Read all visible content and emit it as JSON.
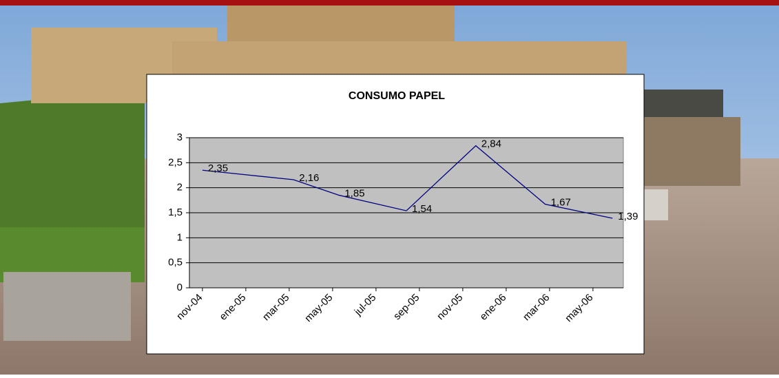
{
  "chart_data": {
    "type": "line",
    "title": "CONSUMO PAPEL",
    "x": [
      0,
      4.2,
      6.3,
      9.4,
      12.6,
      15.8,
      18.9
    ],
    "series": [
      {
        "name": "CONSUMO PAPEL",
        "color": "#000080",
        "values": [
          2.35,
          2.16,
          1.85,
          1.54,
          2.84,
          1.67,
          1.39
        ],
        "value_labels": [
          "2,35",
          "2,16",
          "1,85",
          "1,54",
          "2,84",
          "1,67",
          "1,39"
        ]
      }
    ],
    "xlim": [
      -0.6,
      19.4
    ],
    "xticks": [
      {
        "value": 0,
        "label": "nov-04"
      },
      {
        "value": 2,
        "label": "ene-05"
      },
      {
        "value": 4,
        "label": "mar-05"
      },
      {
        "value": 6,
        "label": "may-05"
      },
      {
        "value": 8,
        "label": "jul-05"
      },
      {
        "value": 10,
        "label": "sep-05"
      },
      {
        "value": 12,
        "label": "nov-05"
      },
      {
        "value": 14,
        "label": "ene-06"
      },
      {
        "value": 16,
        "label": "mar-06"
      },
      {
        "value": 18,
        "label": "may-06"
      }
    ],
    "ylim": [
      0,
      3
    ],
    "yticks": [
      0,
      {
        "value": 0.5,
        "label": "0,5"
      },
      1,
      {
        "value": 1.5,
        "label": "1,5"
      },
      2,
      {
        "value": 2.5,
        "label": "2,5"
      },
      3
    ],
    "grid": true
  }
}
